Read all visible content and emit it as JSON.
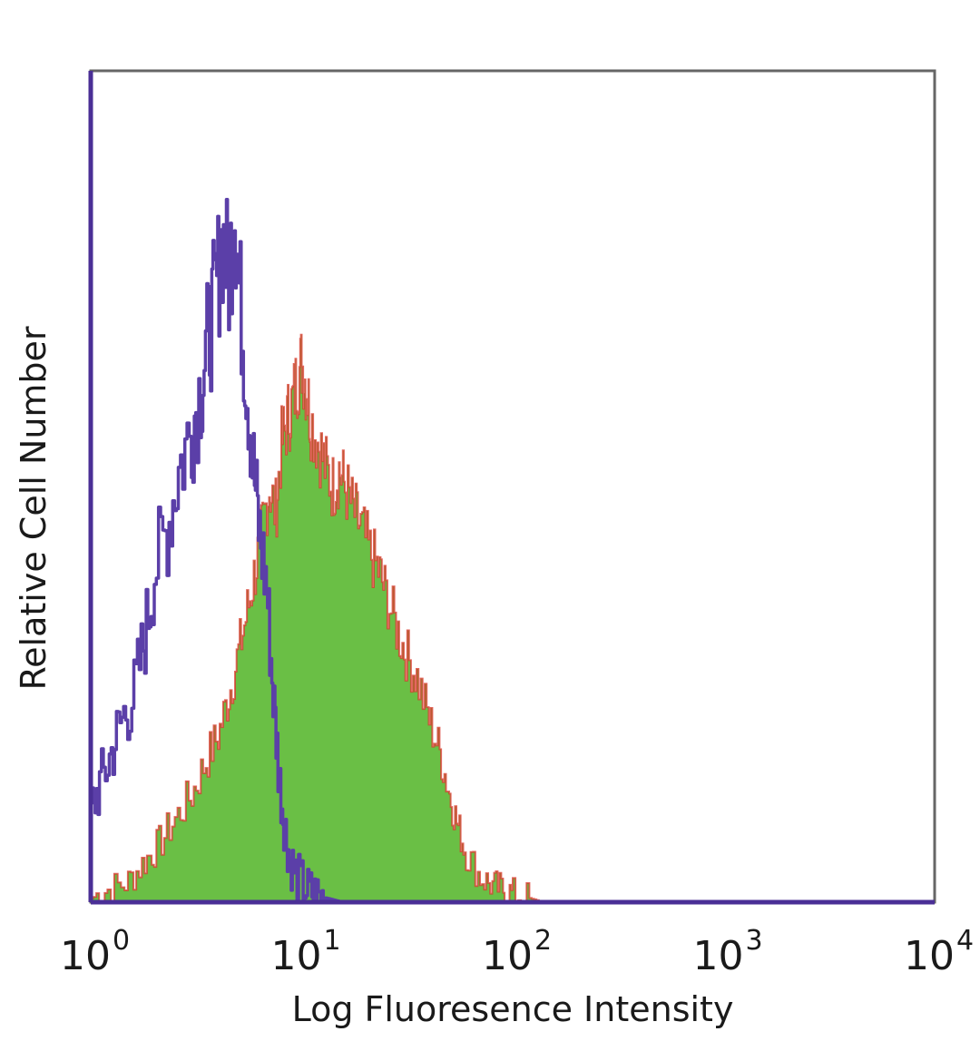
{
  "chart_data": {
    "type": "area",
    "xlabel": "Log Fluoresence Intensity",
    "ylabel": "Relative Cell Number",
    "x_scale": "log",
    "xlim": [
      1,
      10000
    ],
    "ylim": [
      0,
      100
    ],
    "grid": false,
    "x_ticks": [
      {
        "base": "10",
        "exp": "0",
        "value": 1
      },
      {
        "base": "10",
        "exp": "1",
        "value": 10
      },
      {
        "base": "10",
        "exp": "2",
        "value": 100
      },
      {
        "base": "10",
        "exp": "3",
        "value": 1000
      },
      {
        "base": "10",
        "exp": "4",
        "value": 10000
      }
    ],
    "series": [
      {
        "style": "outline",
        "color": "#5b3fa8",
        "x": [
          1.0,
          1.1,
          1.25,
          1.4,
          1.6,
          1.8,
          2.0,
          2.3,
          2.6,
          3.0,
          3.3,
          3.6,
          3.9,
          4.2,
          4.5,
          4.8,
          5.1,
          5.5,
          5.9,
          6.3,
          6.8,
          7.3,
          7.8,
          8.3,
          8.8,
          9.5,
          10.5,
          11.5,
          12.5,
          13.5,
          14.5,
          15.5
        ],
        "values": [
          11,
          14,
          18,
          22,
          25,
          32,
          40,
          45,
          52,
          57,
          62,
          68,
          73,
          80,
          75,
          84,
          72,
          62,
          52,
          44,
          38,
          25,
          15,
          9,
          5,
          3,
          1.5,
          1,
          0.6,
          0.4,
          0.2,
          0
        ]
      },
      {
        "style": "filled",
        "color": "#6abf45",
        "edge_color": "#d9362b",
        "x": [
          1.0,
          1.2,
          1.5,
          1.8,
          2.1,
          2.5,
          3.0,
          3.5,
          4.0,
          4.5,
          5.0,
          5.5,
          6.0,
          6.5,
          7.0,
          7.5,
          8.0,
          8.5,
          9.0,
          9.5,
          10.0,
          10.5,
          11.0,
          12.0,
          13.0,
          14.0,
          15.0,
          16.0,
          17.5,
          19.0,
          21.0,
          23.0,
          25.0,
          28.0,
          31.0,
          35.0,
          40.0,
          45.0,
          50.0,
          55.0,
          60.0,
          70.0,
          80.0,
          90.0,
          100.0,
          120.0,
          140.0
        ],
        "values": [
          0.5,
          1.5,
          2.5,
          5,
          7,
          10,
          13,
          17,
          20,
          25,
          30,
          35,
          40,
          45,
          50,
          47,
          55,
          58,
          60,
          63,
          65,
          62,
          58,
          55,
          52,
          50,
          52,
          50,
          47,
          45,
          42,
          40,
          37,
          33,
          30,
          27,
          22,
          18,
          13,
          9,
          6,
          3,
          2,
          1.5,
          1,
          0.5,
          0
        ]
      }
    ]
  }
}
